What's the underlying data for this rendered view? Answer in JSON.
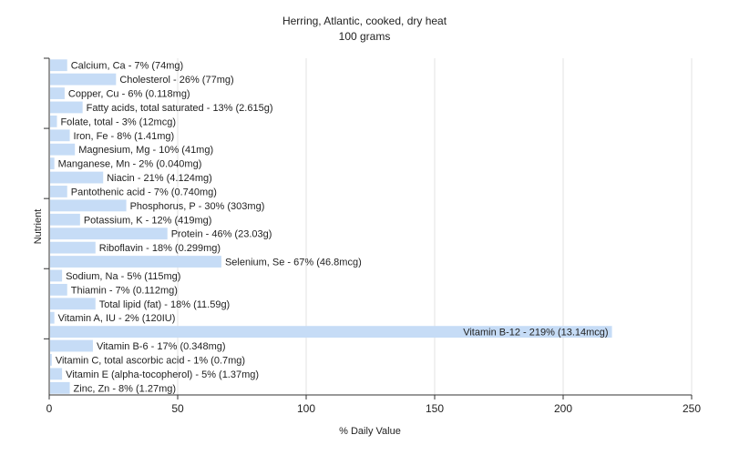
{
  "chart_data": {
    "type": "bar",
    "orientation": "horizontal",
    "title": "Herring, Atlantic, cooked, dry heat",
    "subtitle": "100 grams",
    "xlabel": "% Daily Value",
    "ylabel": "Nutrient",
    "xlim": [
      0,
      250
    ],
    "xticks": [
      0,
      50,
      100,
      150,
      200,
      250
    ],
    "grid": true,
    "bar_color": "#c6dcf6",
    "categories": [
      "Calcium, Ca",
      "Cholesterol",
      "Copper, Cu",
      "Fatty acids, total saturated",
      "Folate, total",
      "Iron, Fe",
      "Magnesium, Mg",
      "Manganese, Mn",
      "Niacin",
      "Pantothenic acid",
      "Phosphorus, P",
      "Potassium, K",
      "Protein",
      "Riboflavin",
      "Selenium, Se",
      "Sodium, Na",
      "Thiamin",
      "Total lipid (fat)",
      "Vitamin A, IU",
      "Vitamin B-12",
      "Vitamin B-6",
      "Vitamin C, total ascorbic acid",
      "Vitamin E (alpha-tocopherol)",
      "Zinc, Zn"
    ],
    "values": [
      7,
      26,
      6,
      13,
      3,
      8,
      10,
      2,
      21,
      7,
      30,
      12,
      46,
      18,
      67,
      5,
      7,
      18,
      2,
      219,
      17,
      1,
      5,
      8
    ],
    "labels": [
      "Calcium, Ca - 7% (74mg)",
      "Cholesterol - 26% (77mg)",
      "Copper, Cu - 6% (0.118mg)",
      "Fatty acids, total saturated - 13% (2.615g)",
      "Folate, total - 3% (12mcg)",
      "Iron, Fe - 8% (1.41mg)",
      "Magnesium, Mg - 10% (41mg)",
      "Manganese, Mn - 2% (0.040mg)",
      "Niacin - 21% (4.124mg)",
      "Pantothenic acid - 7% (0.740mg)",
      "Phosphorus, P - 30% (303mg)",
      "Potassium, K - 12% (419mg)",
      "Protein - 46% (23.03g)",
      "Riboflavin - 18% (0.299mg)",
      "Selenium, Se - 67% (46.8mcg)",
      "Sodium, Na - 5% (115mg)",
      "Thiamin - 7% (0.112mg)",
      "Total lipid (fat) - 18% (11.59g)",
      "Vitamin A, IU - 2% (120IU)",
      "Vitamin B-12 - 219% (13.14mcg)",
      "Vitamin B-6 - 17% (0.348mg)",
      "Vitamin C, total ascorbic acid - 1% (0.7mg)",
      "Vitamin E (alpha-tocopherol) - 5% (1.37mg)",
      "Zinc, Zn - 8% (1.27mg)"
    ]
  }
}
